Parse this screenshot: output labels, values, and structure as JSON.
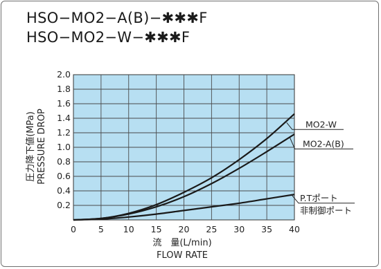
{
  "header": {
    "model_line_1": "HSO−MO2−A(B)−✱✱✱F",
    "model_line_2": "HSO−MO2−W−✱✱✱F"
  },
  "chart_data": {
    "type": "line",
    "xlabel_line_1": "流　量(L/min)",
    "xlabel_line_2": "FLOW RATE",
    "ylabel_line_1": "圧力降下値(MPa)",
    "ylabel_line_2": "PRESSURE DROP",
    "xlim": [
      0,
      40
    ],
    "ylim": [
      0,
      2.0
    ],
    "x_ticks": [
      "0",
      "5",
      "10",
      "15",
      "20",
      "25",
      "30",
      "35",
      "40"
    ],
    "y_ticks": [
      "0.2",
      "0.4",
      "0.6",
      "0.8",
      "1.0",
      "1.2",
      "1.4",
      "1.6",
      "1.8",
      "2.0"
    ],
    "grid": true,
    "plot_background": "#b7dff2",
    "line_color": "#1a1a1a",
    "series": [
      {
        "name": "MO2-W",
        "x": [
          0,
          5,
          10,
          15,
          20,
          25,
          30,
          35,
          40
        ],
        "y": [
          0,
          0.02,
          0.09,
          0.21,
          0.38,
          0.58,
          0.83,
          1.12,
          1.46
        ]
      },
      {
        "name": "MO2-A(B)",
        "x": [
          0,
          5,
          10,
          15,
          20,
          25,
          30,
          35,
          40
        ],
        "y": [
          0,
          0.02,
          0.08,
          0.18,
          0.32,
          0.5,
          0.71,
          0.94,
          1.18
        ]
      },
      {
        "name": "P.Tポート",
        "label_line_2": "非制御ポート",
        "x": [
          0,
          5,
          10,
          15,
          20,
          25,
          30,
          35,
          40
        ],
        "y": [
          0,
          0.01,
          0.04,
          0.08,
          0.13,
          0.18,
          0.23,
          0.29,
          0.35
        ]
      }
    ]
  }
}
